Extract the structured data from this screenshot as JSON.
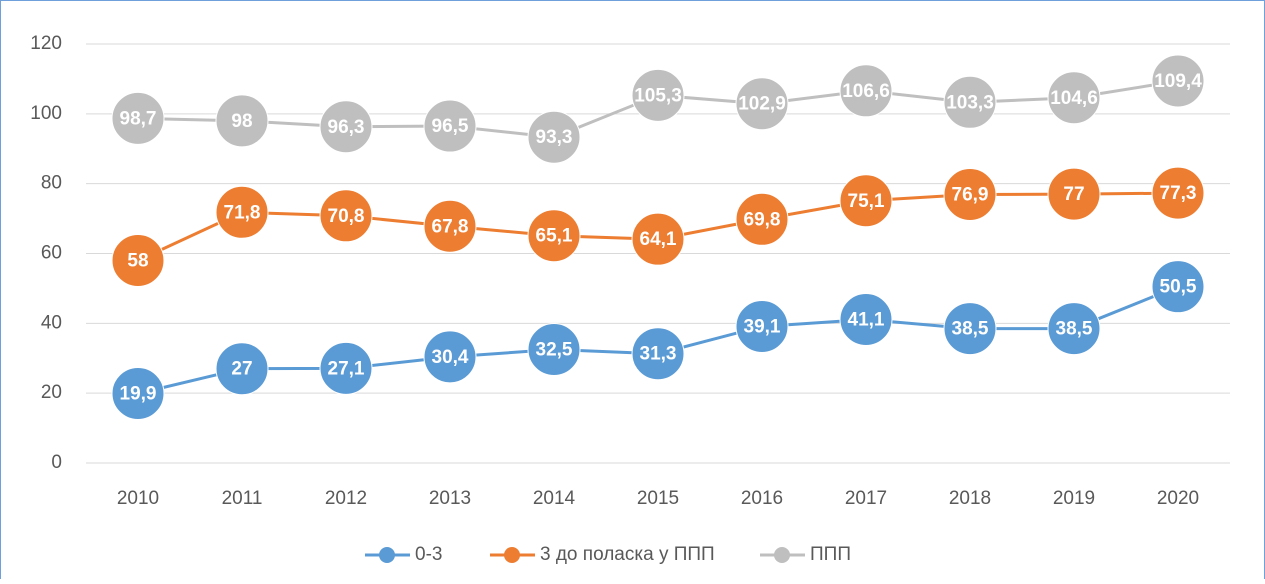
{
  "chart_data": {
    "type": "line",
    "categories": [
      "2010",
      "2011",
      "2012",
      "2013",
      "2014",
      "2015",
      "2016",
      "2017",
      "2018",
      "2019",
      "2020"
    ],
    "series": [
      {
        "name": "0-3",
        "color": "#5b9bd5",
        "values": [
          19.9,
          27,
          27.1,
          30.4,
          32.5,
          31.3,
          39.1,
          41.1,
          38.5,
          38.5,
          50.5
        ],
        "value_labels": [
          "19,9",
          "27",
          "27,1",
          "30,4",
          "32,5",
          "31,3",
          "39,1",
          "41,1",
          "38,5",
          "38,5",
          "50,5"
        ]
      },
      {
        "name": "3 до поласка у ППП",
        "color": "#ed7d31",
        "values": [
          58,
          71.8,
          70.8,
          67.8,
          65.1,
          64.1,
          69.8,
          75.1,
          76.9,
          77,
          77.3
        ],
        "value_labels": [
          "58",
          "71,8",
          "70,8",
          "67,8",
          "65,1",
          "64,1",
          "69,8",
          "75,1",
          "76,9",
          "77",
          "77,3"
        ]
      },
      {
        "name": "ППП",
        "color": "#bfbfbf",
        "values": [
          98.7,
          98,
          96.3,
          96.5,
          93.3,
          105.3,
          102.9,
          106.6,
          103.3,
          104.6,
          109.4
        ],
        "value_labels": [
          "98,7",
          "98",
          "96,3",
          "96,5",
          "93,3",
          "105,3",
          "102,9",
          "106,6",
          "103,3",
          "104,6",
          "109,4"
        ]
      }
    ],
    "ylim": [
      0,
      120
    ],
    "yticks": [
      0,
      20,
      40,
      60,
      80,
      100,
      120
    ],
    "grid": true,
    "legend": "bottom"
  }
}
